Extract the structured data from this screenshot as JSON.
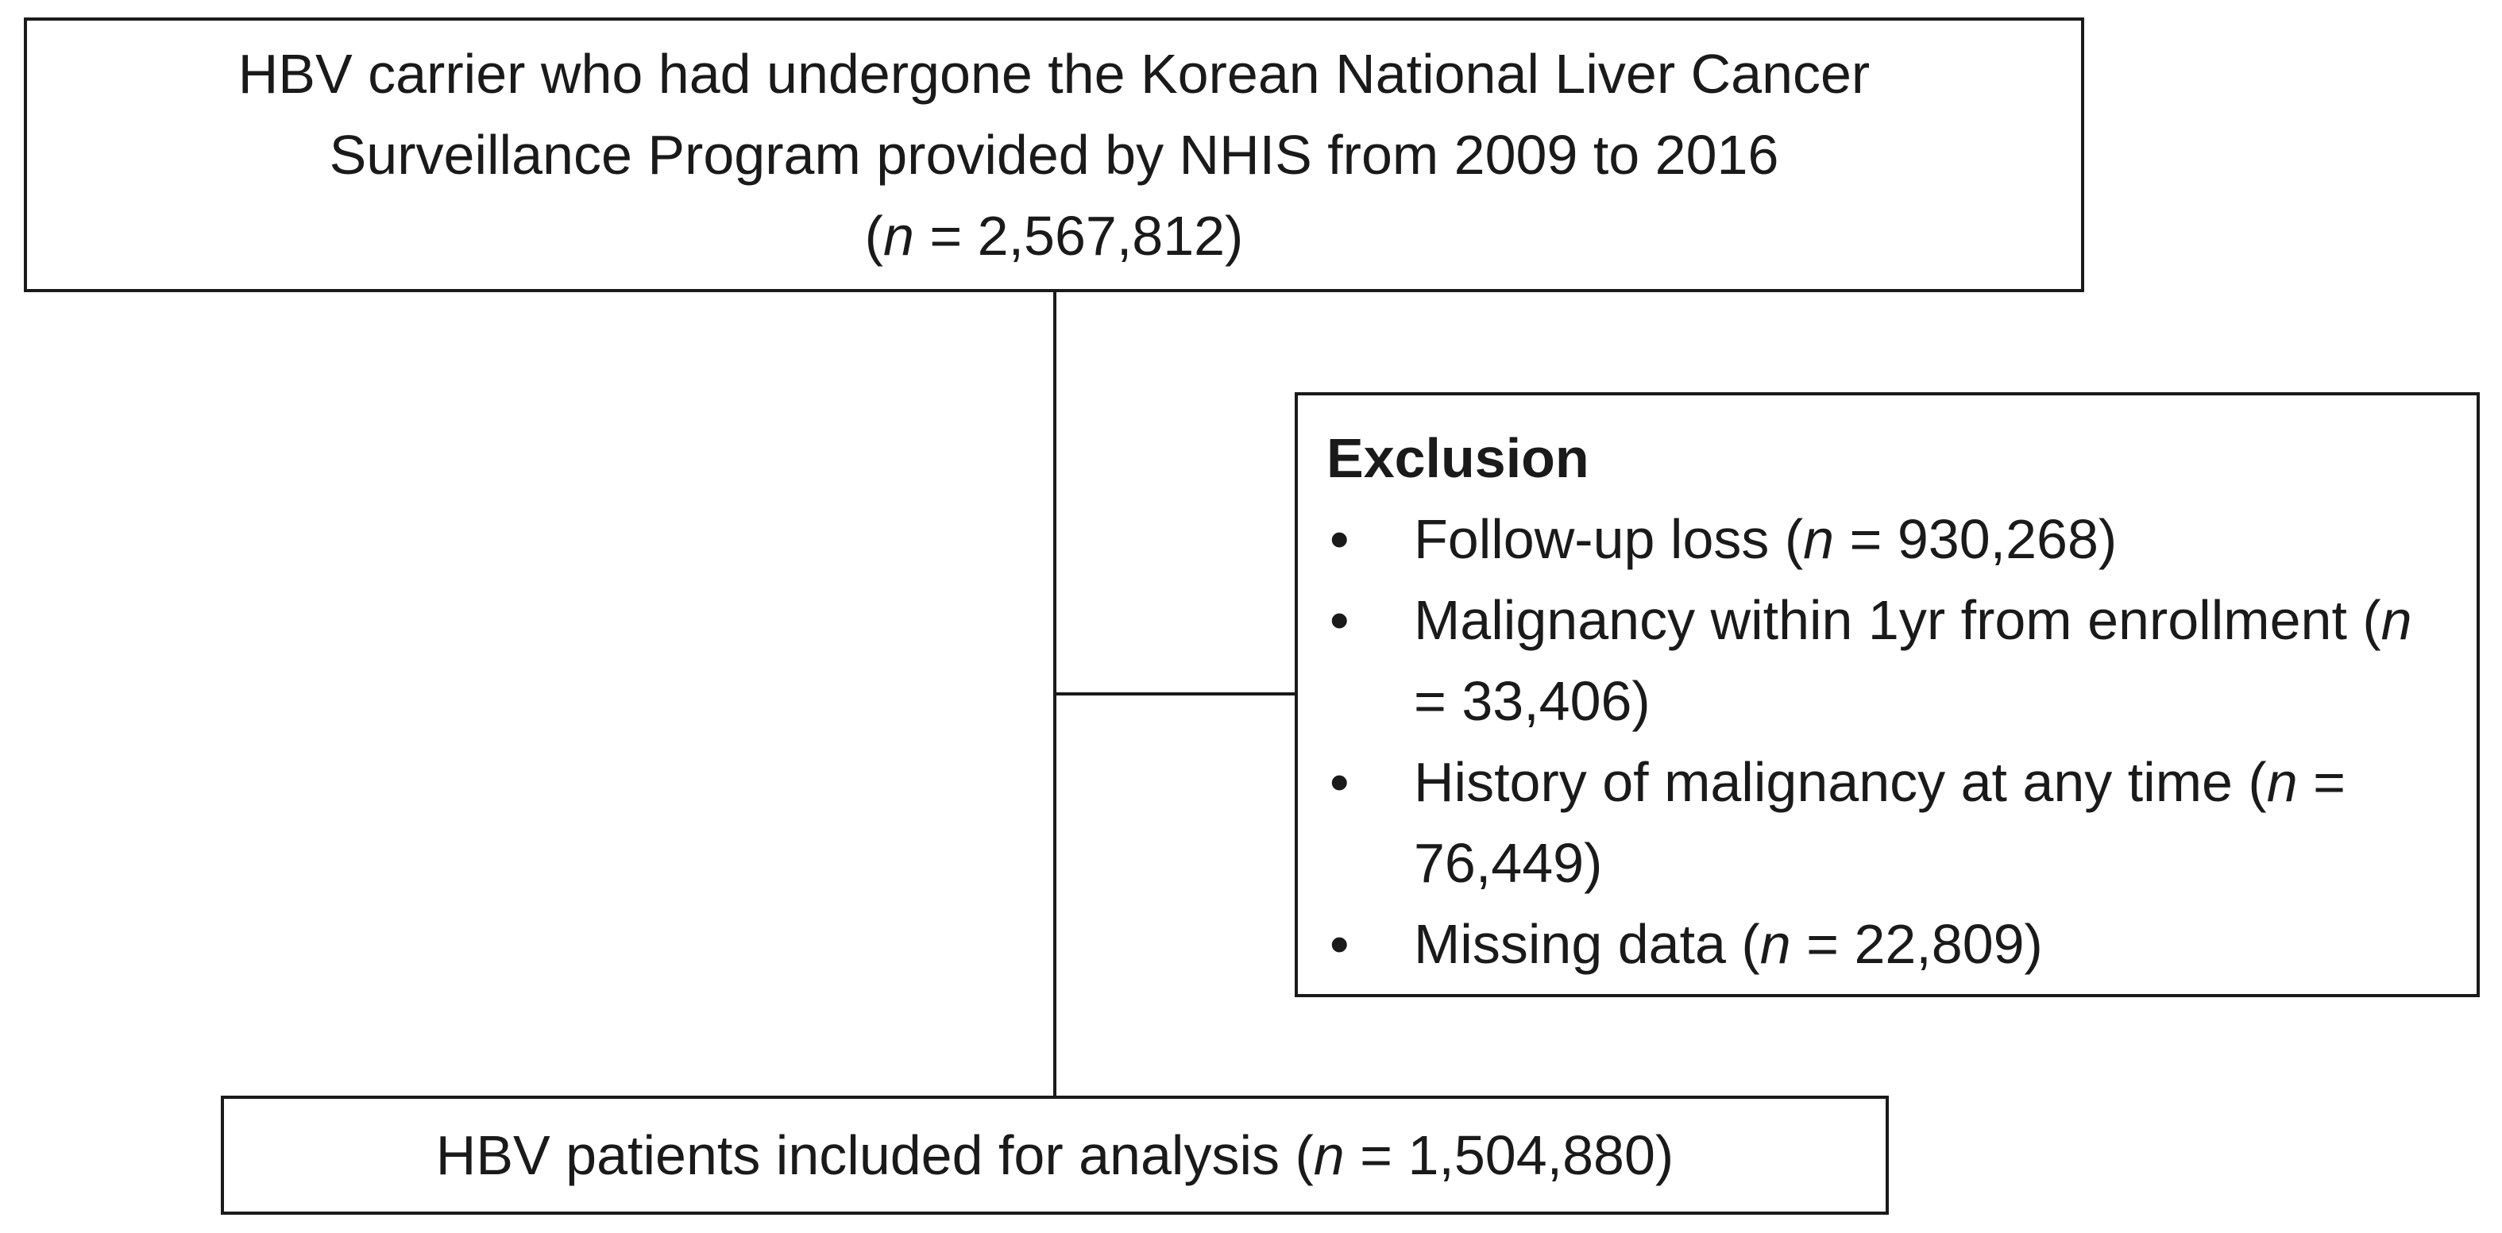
{
  "top_box": {
    "line1": "HBV carrier who had undergone the Korean National Liver Cancer",
    "line2": "Surveillance Program provided by NHIS from 2009 to 2016",
    "n_open": "(",
    "n_symbol": "n",
    "n_value": " = 2,567,812)"
  },
  "exclusion_box": {
    "title": "Exclusion",
    "bullet": "•",
    "items": [
      {
        "pre": "Follow-up loss (",
        "n": "n",
        "post": " = 930,268)"
      },
      {
        "pre": "Malignancy within 1yr from enrollment (",
        "n": "n",
        "post": " = 33,406)"
      },
      {
        "pre": "History of malignancy at any time (",
        "n": "n",
        "post": " = 76,449)"
      },
      {
        "pre": "Missing data (",
        "n": "n",
        "post": " = 22,809)"
      }
    ]
  },
  "bottom_box": {
    "pre": "HBV patients included for analysis (",
    "n": "n",
    "post": " = 1,504,880)"
  }
}
